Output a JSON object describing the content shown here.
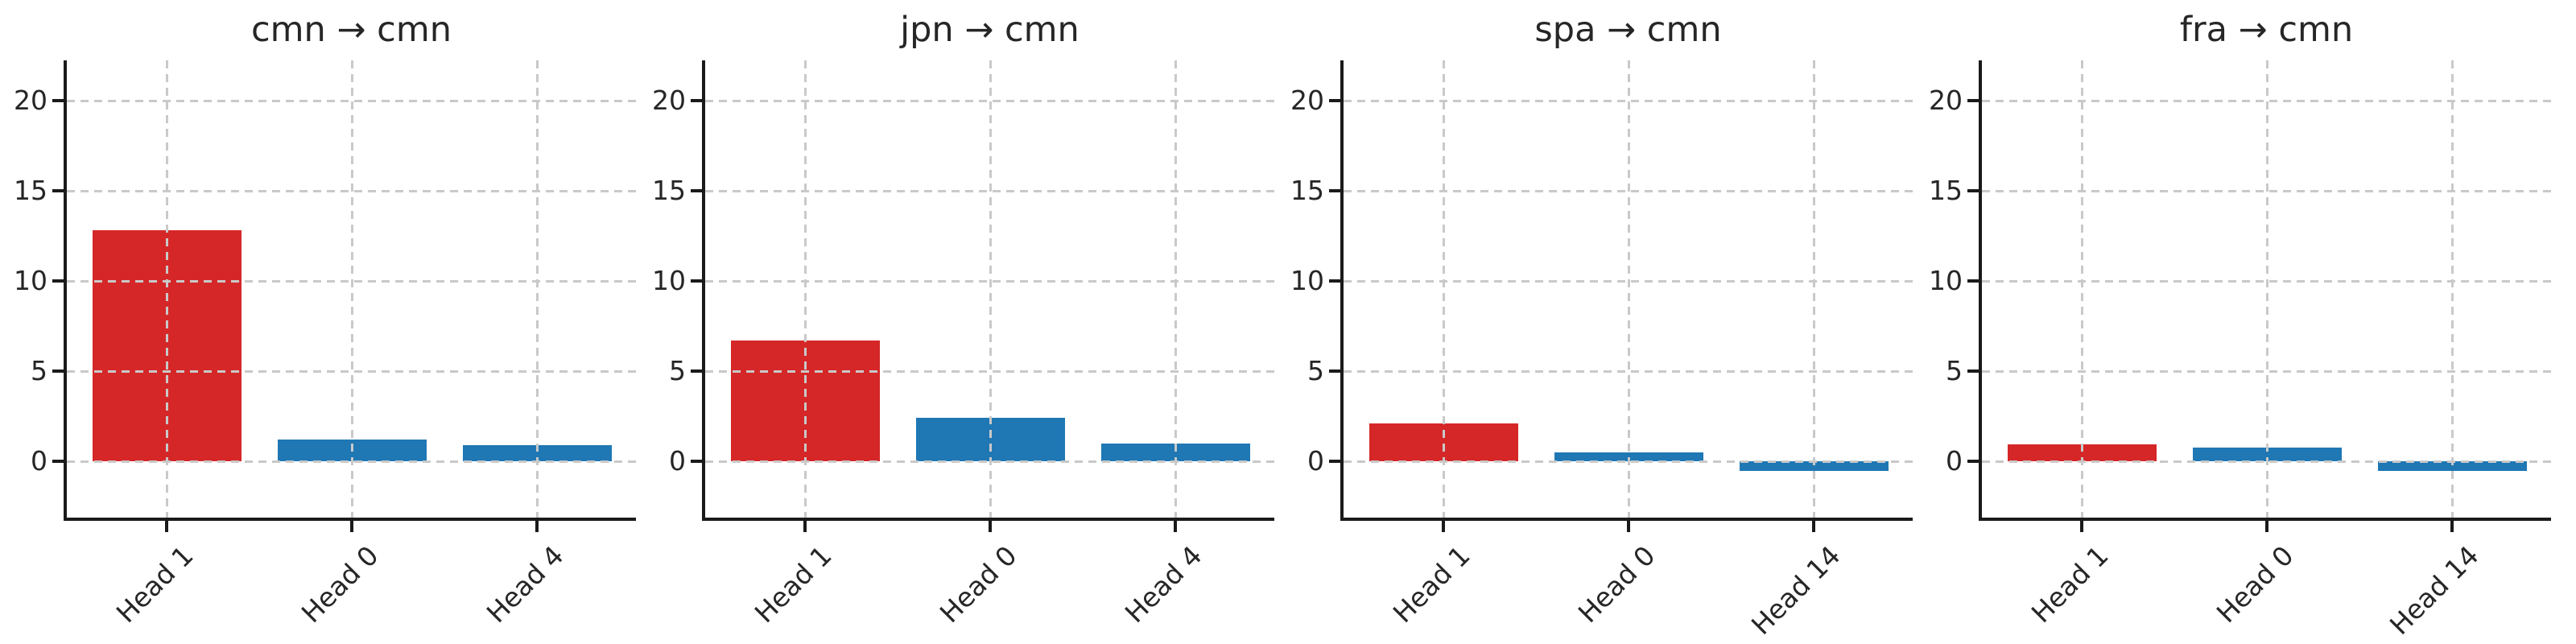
{
  "figure": {
    "background": "#ffffff",
    "text_color": "#262626",
    "spine_color": "#1a1a1a",
    "grid_color": "#c9c9c9"
  },
  "colors": {
    "highlight_red": "#d62728",
    "default_blue": "#1f77b4"
  },
  "chart_data": [
    {
      "type": "bar",
      "title": "cmn → cmn",
      "categories": [
        "Head 1",
        "Head 0",
        "Head 4"
      ],
      "values": [
        12.8,
        1.2,
        0.9
      ],
      "bar_colors": [
        "#d62728",
        "#1f77b4",
        "#1f77b4"
      ],
      "xlabel": "",
      "ylabel": "",
      "ylim": [
        -3.1,
        22.2
      ],
      "yticks": [
        0,
        5,
        10,
        15,
        20
      ],
      "grid": "dashed, both axes, drawn above bars",
      "legend": "none"
    },
    {
      "type": "bar",
      "title": "jpn → cmn",
      "categories": [
        "Head 1",
        "Head 0",
        "Head 4"
      ],
      "values": [
        6.7,
        2.4,
        1.0
      ],
      "bar_colors": [
        "#d62728",
        "#1f77b4",
        "#1f77b4"
      ],
      "xlabel": "",
      "ylabel": "",
      "ylim": [
        -3.1,
        22.2
      ],
      "yticks": [
        0,
        5,
        10,
        15,
        20
      ],
      "grid": "dashed, both axes, drawn above bars",
      "legend": "none"
    },
    {
      "type": "bar",
      "title": "spa → cmn",
      "categories": [
        "Head 1",
        "Head 0",
        "Head 14"
      ],
      "values": [
        2.1,
        0.5,
        -0.55
      ],
      "bar_colors": [
        "#d62728",
        "#1f77b4",
        "#1f77b4"
      ],
      "xlabel": "",
      "ylabel": "",
      "ylim": [
        -3.1,
        22.2
      ],
      "yticks": [
        0,
        5,
        10,
        15,
        20
      ],
      "grid": "dashed, both axes, drawn above bars",
      "legend": "none"
    },
    {
      "type": "bar",
      "title": "fra → cmn",
      "categories": [
        "Head 1",
        "Head 0",
        "Head 14"
      ],
      "values": [
        0.95,
        0.75,
        -0.55
      ],
      "bar_colors": [
        "#d62728",
        "#1f77b4",
        "#1f77b4"
      ],
      "xlabel": "",
      "ylabel": "",
      "ylim": [
        -3.1,
        22.2
      ],
      "yticks": [
        0,
        5,
        10,
        15,
        20
      ],
      "grid": "dashed, both axes, drawn above bars",
      "legend": "none"
    }
  ]
}
